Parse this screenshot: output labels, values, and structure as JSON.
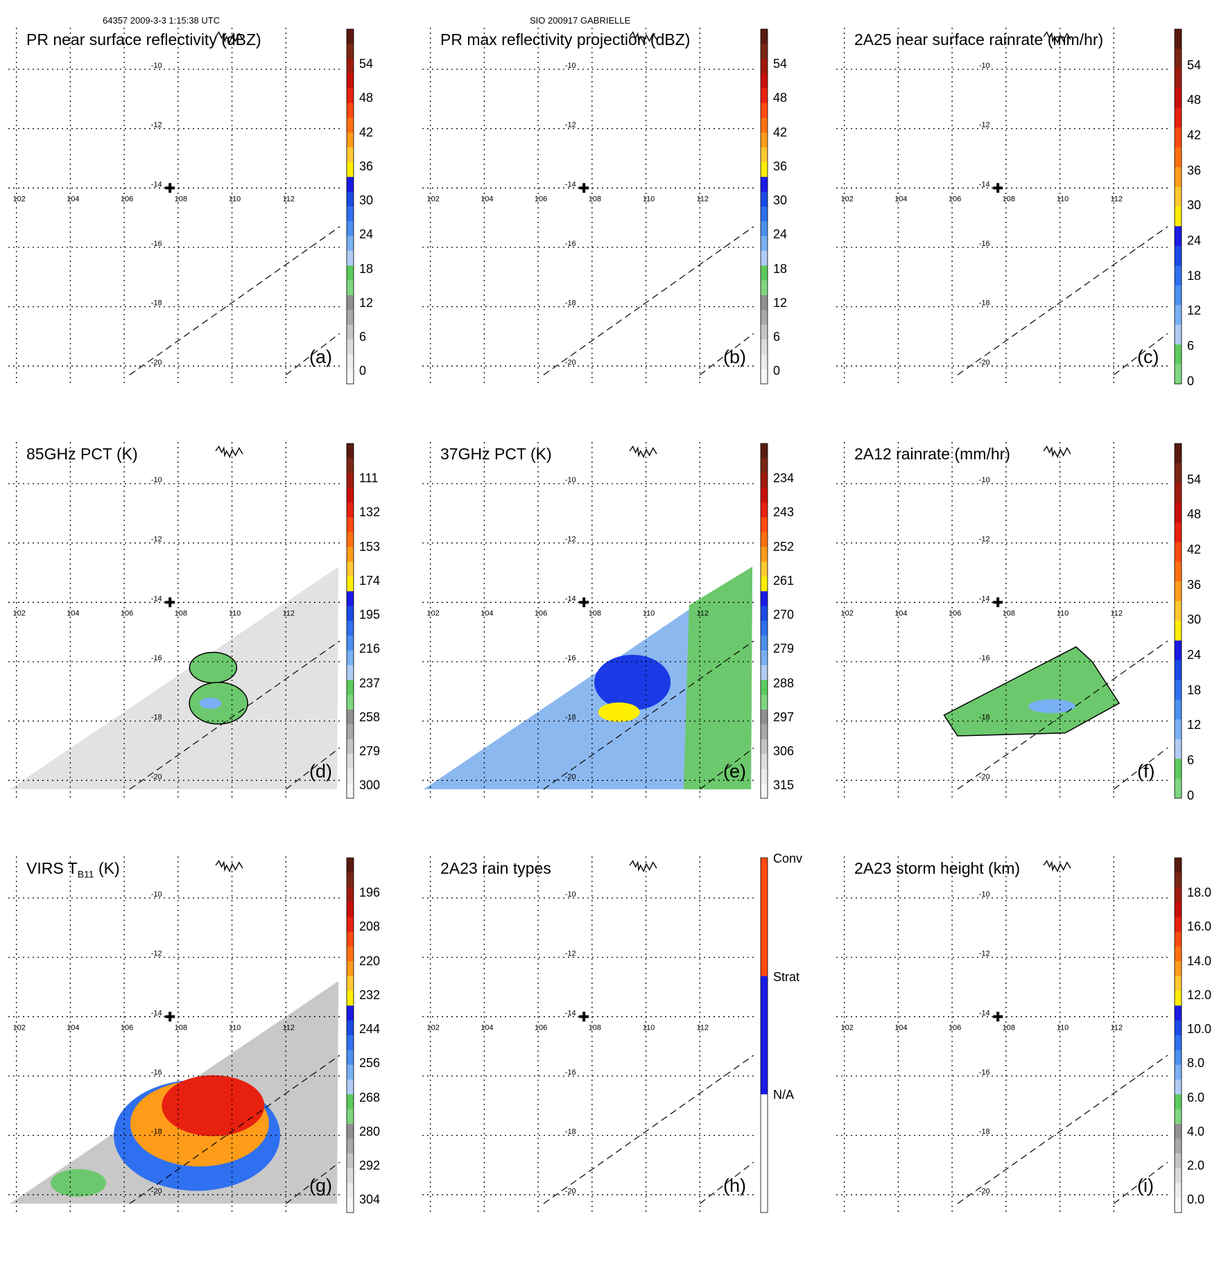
{
  "header": {
    "left_text": "64357 2009-3-3 1:15:38 UTC",
    "center_text": "SIO 200917 GABRIELLE"
  },
  "map": {
    "lon_ticks": [
      "102",
      "104",
      "106",
      "108",
      "110",
      "112"
    ],
    "lat_ticks": [
      "-10",
      "-12",
      "-14",
      "-16",
      "-18",
      "-20"
    ],
    "lon_range": [
      101.7,
      114.0
    ],
    "lat_range": [
      -20.6,
      -8.6
    ],
    "center_marker": {
      "lon": 107.7,
      "lat": -14.0,
      "symbol": "✚"
    }
  },
  "panels": [
    {
      "id": "a",
      "letter": "(a)",
      "title": "PR near surface reflectivity (dBZ)",
      "subscript": "",
      "colorbar": {
        "labels": [
          "54",
          "48",
          "42",
          "36",
          "30",
          "24",
          "18",
          "12",
          "6",
          "0"
        ],
        "colors": [
          "#5a1a0e",
          "#7a2514",
          "#a01a0c",
          "#c80e0a",
          "#e82010",
          "#ff4a10",
          "#ff7010",
          "#ff9c1a",
          "#ffc830",
          "#ffee00",
          "#1a1ae6",
          "#1a4ae6",
          "#2f70f0",
          "#4a90f0",
          "#7ab0f4",
          "#b0ccf4",
          "#5ccb5c",
          "#80d680",
          "#909090",
          "#a8a8a8",
          "#c4c4c4",
          "#dcdcdc",
          "#ececec",
          "#f7f7f7"
        ]
      },
      "swath": "none"
    },
    {
      "id": "b",
      "letter": "(b)",
      "title": "PR max reflectivity projection (dBZ)",
      "subscript": "",
      "colorbar": {
        "labels": [
          "54",
          "48",
          "42",
          "36",
          "30",
          "24",
          "18",
          "12",
          "6",
          "0"
        ],
        "colors": [
          "#5a1a0e",
          "#7a2514",
          "#a01a0c",
          "#c80e0a",
          "#e82010",
          "#ff4a10",
          "#ff7010",
          "#ff9c1a",
          "#ffc830",
          "#ffee00",
          "#1a1ae6",
          "#1a4ae6",
          "#2f70f0",
          "#4a90f0",
          "#7ab0f4",
          "#b0ccf4",
          "#5ccb5c",
          "#80d680",
          "#909090",
          "#a8a8a8",
          "#c4c4c4",
          "#dcdcdc",
          "#ececec",
          "#f7f7f7"
        ]
      },
      "swath": "none"
    },
    {
      "id": "c",
      "letter": "(c)",
      "title": "2A25 near surface rainrate (mm/hr)",
      "subscript": "",
      "colorbar": {
        "labels": [
          "54",
          "48",
          "42",
          "36",
          "30",
          "24",
          "18",
          "12",
          "6",
          "0"
        ],
        "colors": [
          "#5a1a0e",
          "#7a2514",
          "#a01a0c",
          "#c80e0a",
          "#e82010",
          "#ff4a10",
          "#ff7010",
          "#ff9c1a",
          "#ffc830",
          "#ffee00",
          "#1a1ae6",
          "#1a4ae6",
          "#2f70f0",
          "#4a90f0",
          "#7ab0f4",
          "#b0ccf4",
          "#5ccb5c",
          "#80d680"
        ]
      },
      "swath": "none"
    },
    {
      "id": "d",
      "letter": "(d)",
      "title": "85GHz PCT (K)",
      "subscript": "",
      "colorbar": {
        "labels": [
          "111",
          "132",
          "153",
          "174",
          "195",
          "216",
          "237",
          "258",
          "279",
          "300"
        ],
        "colors": [
          "#5a1a0e",
          "#7a2514",
          "#a01a0c",
          "#c80e0a",
          "#e82010",
          "#ff4a10",
          "#ff7010",
          "#ff9c1a",
          "#ffc830",
          "#ffee00",
          "#1a1ae6",
          "#1a4ae6",
          "#2f70f0",
          "#4a90f0",
          "#7ab0f4",
          "#b0ccf4",
          "#5ccb5c",
          "#80d680",
          "#909090",
          "#a8a8a8",
          "#c4c4c4",
          "#dcdcdc",
          "#ececec",
          "#f7f7f7"
        ]
      },
      "swath": "gray"
    },
    {
      "id": "e",
      "letter": "(e)",
      "title": "37GHz PCT (K)",
      "subscript": "",
      "colorbar": {
        "labels": [
          "234",
          "243",
          "252",
          "261",
          "270",
          "279",
          "288",
          "297",
          "306",
          "315"
        ],
        "colors": [
          "#5a1a0e",
          "#7a2514",
          "#a01a0c",
          "#c80e0a",
          "#e82010",
          "#ff4a10",
          "#ff7010",
          "#ff9c1a",
          "#ffc830",
          "#ffee00",
          "#1a1ae6",
          "#1a4ae6",
          "#2f70f0",
          "#4a90f0",
          "#7ab0f4",
          "#b0ccf4",
          "#5ccb5c",
          "#80d680",
          "#909090",
          "#a8a8a8",
          "#c4c4c4",
          "#dcdcdc",
          "#ececec",
          "#f7f7f7"
        ]
      },
      "swath": "blue-green"
    },
    {
      "id": "f",
      "letter": "(f)",
      "title": "2A12 rainrate (mm/hr)",
      "subscript": "",
      "colorbar": {
        "labels": [
          "54",
          "48",
          "42",
          "36",
          "30",
          "24",
          "18",
          "12",
          "6",
          "0"
        ],
        "colors": [
          "#5a1a0e",
          "#7a2514",
          "#a01a0c",
          "#c80e0a",
          "#e82010",
          "#ff4a10",
          "#ff7010",
          "#ff9c1a",
          "#ffc830",
          "#ffee00",
          "#1a1ae6",
          "#1a4ae6",
          "#2f70f0",
          "#4a90f0",
          "#7ab0f4",
          "#b0ccf4",
          "#5ccb5c",
          "#80d680"
        ]
      },
      "swath": "green-rain"
    },
    {
      "id": "g",
      "letter": "(g)",
      "title": "VIRS T",
      "subscript": "B11",
      "title_suffix": " (K)",
      "colorbar": {
        "labels": [
          "196",
          "208",
          "220",
          "232",
          "244",
          "256",
          "268",
          "280",
          "292",
          "304"
        ],
        "colors": [
          "#5a1a0e",
          "#7a2514",
          "#a01a0c",
          "#c80e0a",
          "#e82010",
          "#ff4a10",
          "#ff7010",
          "#ff9c1a",
          "#ffc830",
          "#ffee00",
          "#1a1ae6",
          "#1a4ae6",
          "#2f70f0",
          "#4a90f0",
          "#7ab0f4",
          "#b0ccf4",
          "#5ccb5c",
          "#80d680",
          "#909090",
          "#a8a8a8",
          "#c4c4c4",
          "#dcdcdc",
          "#ececec",
          "#f7f7f7"
        ]
      },
      "swath": "ir"
    },
    {
      "id": "h",
      "letter": "(h)",
      "title": "2A23 rain types",
      "subscript": "",
      "colorbar": {
        "labels": [
          "Conv",
          "Strat",
          "N/A"
        ],
        "colors": [
          "#ff4a10",
          "#1a1ae6",
          "#ffffff"
        ]
      },
      "swath": "none"
    },
    {
      "id": "i",
      "letter": "(i)",
      "title": "2A23 storm height (km)",
      "subscript": "",
      "colorbar": {
        "labels": [
          "18.0",
          "16.0",
          "14.0",
          "12.0",
          "10.0",
          "8.0",
          "6.0",
          "4.0",
          "2.0",
          "0.0"
        ],
        "colors": [
          "#5a1a0e",
          "#7a2514",
          "#a01a0c",
          "#c80e0a",
          "#e82010",
          "#ff4a10",
          "#ff7010",
          "#ff9c1a",
          "#ffc830",
          "#ffee00",
          "#1a1ae6",
          "#1a4ae6",
          "#2f70f0",
          "#4a90f0",
          "#7ab0f4",
          "#b0ccf4",
          "#5ccb5c",
          "#80d680",
          "#909090",
          "#a8a8a8",
          "#c4c4c4",
          "#dcdcdc",
          "#ececec",
          "#f7f7f7"
        ]
      },
      "swath": "none"
    }
  ]
}
